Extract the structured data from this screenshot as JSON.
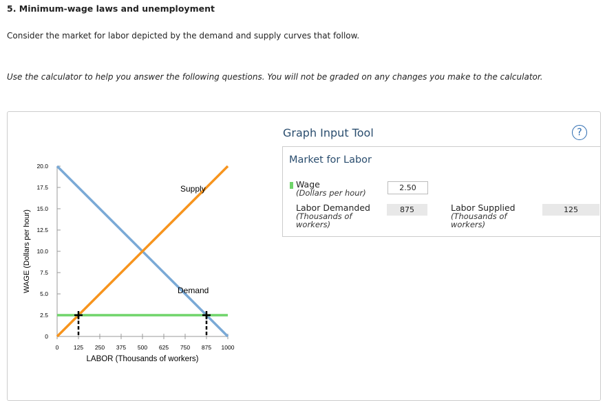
{
  "header": {
    "title": "5. Minimum-wage laws and unemployment",
    "intro": "Consider the market for labor depicted by the demand and supply curves that follow.",
    "instruction": "Use the calculator to help you answer the following questions. You will not be graded on any changes you make to the calculator."
  },
  "chart_data": {
    "type": "line",
    "xlabel": "LABOR (Thousands of workers)",
    "ylabel": "WAGE (Dollars per hour)",
    "xlim": [
      0,
      1000
    ],
    "ylim": [
      0,
      20
    ],
    "xticks": [
      0,
      125,
      250,
      375,
      500,
      625,
      750,
      875,
      1000
    ],
    "yticks": [
      0,
      2.5,
      {
        "value": 5,
        "label": "5.0"
      },
      7.5,
      {
        "value": 10,
        "label": "10.0"
      },
      12.5,
      {
        "value": 15,
        "label": "15.0"
      },
      17.5,
      {
        "value": 20,
        "label": "20.0"
      }
    ],
    "series": [
      {
        "name": "Demand",
        "color": "#7aa9d6",
        "x": [
          0,
          1000
        ],
        "values": [
          20,
          0
        ]
      },
      {
        "name": "Supply",
        "color": "#f7941d",
        "x": [
          0,
          1000
        ],
        "values": [
          0,
          20
        ]
      },
      {
        "color": "#6fd46a",
        "x": [
          0,
          1000
        ],
        "values": [
          2.5,
          2.5
        ]
      }
    ],
    "markers": {
      "x": [
        125,
        875
      ],
      "values": [
        2.5,
        2.5
      ]
    }
  },
  "tool": {
    "title": "Graph Input Tool",
    "help": "?",
    "panel_title": "Market for Labor",
    "wage": {
      "label": "Wage",
      "unit": "(Dollars per hour)",
      "value": "2.50"
    },
    "demanded": {
      "label": "Labor Demanded",
      "unit": "(Thousands of workers)",
      "value": 875
    },
    "supplied": {
      "label": "Labor Supplied",
      "unit": "(Thousands of workers)",
      "value": 125
    }
  }
}
